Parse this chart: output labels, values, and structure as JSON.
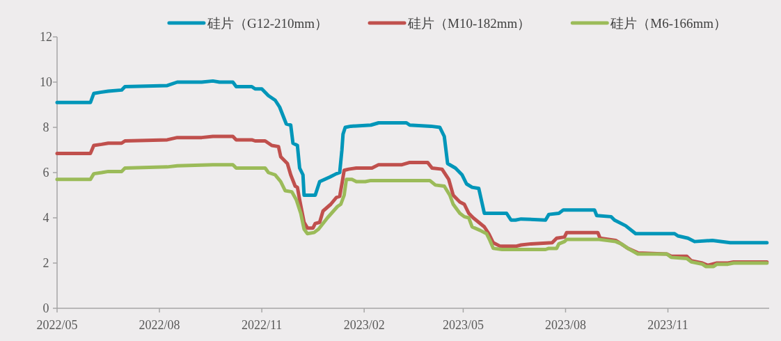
{
  "chart_data": {
    "type": "line",
    "x": [
      "2022-05-01",
      "2022-05-31",
      "2022-06-03",
      "2022-06-09",
      "2022-06-16",
      "2022-06-28",
      "2022-07-01",
      "2022-08-08",
      "2022-08-17",
      "2022-09-08",
      "2022-09-18",
      "2022-09-24",
      "2022-10-06",
      "2022-10-09",
      "2022-10-23",
      "2022-10-26",
      "2022-11-01",
      "2022-11-07",
      "2022-11-13",
      "2022-11-17",
      "2022-11-21",
      "2022-11-23",
      "2022-11-27",
      "2022-11-29",
      "2022-12-03",
      "2022-12-05",
      "2022-12-08",
      "2022-12-09",
      "2022-12-19",
      "2022-12-23",
      "2023-01-01",
      "2023-01-07",
      "2023-01-10",
      "2023-01-12",
      "2023-01-13",
      "2023-01-15",
      "2023-01-20",
      "2023-02-07",
      "2023-02-14",
      "2023-03-11",
      "2023-03-14",
      "2023-04-02",
      "2023-04-10",
      "2023-04-14",
      "2023-04-17",
      "2023-04-24",
      "2023-04-30",
      "2023-05-04",
      "2023-05-09",
      "2023-05-15",
      "2023-05-20",
      "2023-06-09",
      "2023-06-13",
      "2023-06-17",
      "2023-06-22",
      "2023-07-14",
      "2023-07-17",
      "2023-07-26",
      "2023-07-30",
      "2023-08-27",
      "2023-08-29",
      "2023-09-11",
      "2023-09-14",
      "2023-09-24",
      "2023-10-03",
      "2023-11-07",
      "2023-11-10",
      "2023-11-19",
      "2023-11-25",
      "2023-12-11",
      "2023-12-27",
      "2024-01-29"
    ],
    "series": [
      {
        "name": "硅片（G12-210mm）",
        "color": "#0096b9",
        "values": [
          9.1,
          9.1,
          9.5,
          9.55,
          9.6,
          9.65,
          9.8,
          9.85,
          10.0,
          10.0,
          10.05,
          10.0,
          10.0,
          9.8,
          9.8,
          9.7,
          9.7,
          9.4,
          9.2,
          8.9,
          8.4,
          8.15,
          8.1,
          7.3,
          7.2,
          6.2,
          5.9,
          5.0,
          5.0,
          5.6,
          5.8,
          5.95,
          6.0,
          7.0,
          7.7,
          8.0,
          8.05,
          8.1,
          8.2,
          8.2,
          8.1,
          8.05,
          8.0,
          7.6,
          6.4,
          6.2,
          5.9,
          5.5,
          5.35,
          5.3,
          4.2,
          4.2,
          3.9,
          3.9,
          3.95,
          3.9,
          4.15,
          4.2,
          4.35,
          4.35,
          4.1,
          4.05,
          3.9,
          3.65,
          3.3,
          3.3,
          3.2,
          3.1,
          2.95,
          3.0,
          2.9,
          2.9
        ]
      },
      {
        "name": "硅片（M10-182mm）",
        "color": "#c0504d",
        "x": [
          "2022-05-01",
          "2022-05-31",
          "2022-06-03",
          "2022-06-10",
          "2022-06-16",
          "2022-06-28",
          "2022-07-01",
          "2022-08-08",
          "2022-08-17",
          "2022-09-08",
          "2022-09-18",
          "2022-10-06",
          "2022-10-09",
          "2022-10-23",
          "2022-10-26",
          "2022-11-04",
          "2022-11-10",
          "2022-11-16",
          "2022-11-18",
          "2022-11-24",
          "2022-11-27",
          "2022-12-01",
          "2022-12-03",
          "2022-12-05",
          "2022-12-09",
          "2022-12-12",
          "2022-12-17",
          "2022-12-19",
          "2022-12-23",
          "2022-12-26",
          "2023-01-02",
          "2023-01-07",
          "2023-01-10",
          "2023-01-12",
          "2023-01-14",
          "2023-01-18",
          "2023-01-25",
          "2023-02-08",
          "2023-02-14",
          "2023-03-07",
          "2023-03-14",
          "2023-03-30",
          "2023-04-03",
          "2023-04-12",
          "2023-04-18",
          "2023-04-22",
          "2023-04-28",
          "2023-05-02",
          "2023-05-06",
          "2023-05-10",
          "2023-05-15",
          "2023-05-20",
          "2023-05-24",
          "2023-05-28",
          "2023-06-03",
          "2023-06-18",
          "2023-06-22",
          "2023-07-01",
          "2023-07-20",
          "2023-07-24",
          "2023-07-31",
          "2023-08-02",
          "2023-08-30",
          "2023-09-01",
          "2023-09-15",
          "2023-09-20",
          "2023-09-26",
          "2023-10-05",
          "2023-10-31",
          "2023-11-04",
          "2023-11-18",
          "2023-11-22",
          "2023-12-02",
          "2023-12-07",
          "2023-12-15",
          "2023-12-25",
          "2023-12-30",
          "2024-01-29"
        ],
        "values": [
          6.85,
          6.85,
          7.2,
          7.25,
          7.3,
          7.3,
          7.4,
          7.45,
          7.55,
          7.55,
          7.6,
          7.6,
          7.45,
          7.45,
          7.4,
          7.4,
          7.2,
          7.15,
          6.7,
          6.4,
          5.9,
          5.4,
          5.35,
          4.8,
          3.8,
          3.55,
          3.55,
          3.75,
          3.8,
          4.3,
          4.6,
          4.9,
          4.95,
          5.5,
          6.1,
          6.15,
          6.2,
          6.2,
          6.35,
          6.35,
          6.45,
          6.45,
          6.2,
          6.15,
          5.7,
          5.0,
          4.7,
          4.6,
          4.2,
          4.0,
          3.8,
          3.6,
          3.3,
          2.9,
          2.75,
          2.75,
          2.8,
          2.85,
          2.9,
          3.1,
          3.15,
          3.35,
          3.35,
          3.1,
          3.0,
          2.85,
          2.65,
          2.45,
          2.4,
          2.3,
          2.3,
          2.1,
          2.0,
          1.9,
          2.0,
          2.0,
          2.05,
          2.05
        ]
      },
      {
        "name": "硅片（M6-166mm）",
        "color": "#9bbb59",
        "x": [
          "2022-05-01",
          "2022-05-31",
          "2022-06-03",
          "2022-06-10",
          "2022-06-16",
          "2022-06-28",
          "2022-07-01",
          "2022-08-08",
          "2022-08-17",
          "2022-09-18",
          "2022-10-06",
          "2022-10-09",
          "2022-11-04",
          "2022-11-07",
          "2022-11-13",
          "2022-11-18",
          "2022-11-22",
          "2022-11-28",
          "2022-12-02",
          "2022-12-06",
          "2022-12-09",
          "2022-12-12",
          "2022-12-18",
          "2022-12-22",
          "2022-12-30",
          "2023-01-08",
          "2023-01-11",
          "2023-01-14",
          "2023-01-16",
          "2023-01-21",
          "2023-01-25",
          "2023-02-02",
          "2023-02-07",
          "2023-04-01",
          "2023-04-06",
          "2023-04-14",
          "2023-04-19",
          "2023-04-22",
          "2023-04-28",
          "2023-05-02",
          "2023-05-06",
          "2023-05-09",
          "2023-05-16",
          "2023-05-22",
          "2023-05-25",
          "2023-05-28",
          "2023-06-05",
          "2023-07-14",
          "2023-07-17",
          "2023-07-24",
          "2023-07-26",
          "2023-07-31",
          "2023-08-02",
          "2023-08-30",
          "2023-09-15",
          "2023-09-20",
          "2023-09-26",
          "2023-10-05",
          "2023-10-31",
          "2023-11-04",
          "2023-11-18",
          "2023-11-22",
          "2023-12-02",
          "2023-12-05",
          "2023-12-12",
          "2023-12-15",
          "2023-12-25",
          "2023-12-30",
          "2024-01-29"
        ],
        "values": [
          5.7,
          5.7,
          5.95,
          6.0,
          6.05,
          6.05,
          6.2,
          6.25,
          6.3,
          6.35,
          6.35,
          6.2,
          6.2,
          6.0,
          5.9,
          5.6,
          5.2,
          5.15,
          4.8,
          4.2,
          3.5,
          3.3,
          3.35,
          3.5,
          4.0,
          4.5,
          4.6,
          5.0,
          5.7,
          5.7,
          5.6,
          5.6,
          5.65,
          5.65,
          5.45,
          5.4,
          5.0,
          4.6,
          4.2,
          4.05,
          4.0,
          3.6,
          3.45,
          3.3,
          3.0,
          2.65,
          2.6,
          2.6,
          2.65,
          2.65,
          2.85,
          2.95,
          3.05,
          3.05,
          2.95,
          2.85,
          2.65,
          2.4,
          2.4,
          2.25,
          2.2,
          2.05,
          1.95,
          1.85,
          1.85,
          1.95,
          1.95,
          2.0,
          2.0
        ]
      }
    ],
    "xlim": [
      "2022-05-01",
      "2024-01-31"
    ],
    "xticks": [
      {
        "value": "2022-05",
        "label": "2022/05"
      },
      {
        "value": "2022-08",
        "label": "2022/08"
      },
      {
        "value": "2022-11",
        "label": "2022/11"
      },
      {
        "value": "2023-02",
        "label": "2023/02"
      },
      {
        "value": "2023-05",
        "label": "2023/05"
      },
      {
        "value": "2023-08",
        "label": "2023/08"
      },
      {
        "value": "2023-11",
        "label": "2023/11"
      }
    ],
    "ylim": [
      0,
      12
    ],
    "yticks": [
      0,
      2,
      4,
      6,
      8,
      10,
      12
    ],
    "legend": "top",
    "grid": false,
    "marker": "none",
    "line_style": "solid"
  }
}
